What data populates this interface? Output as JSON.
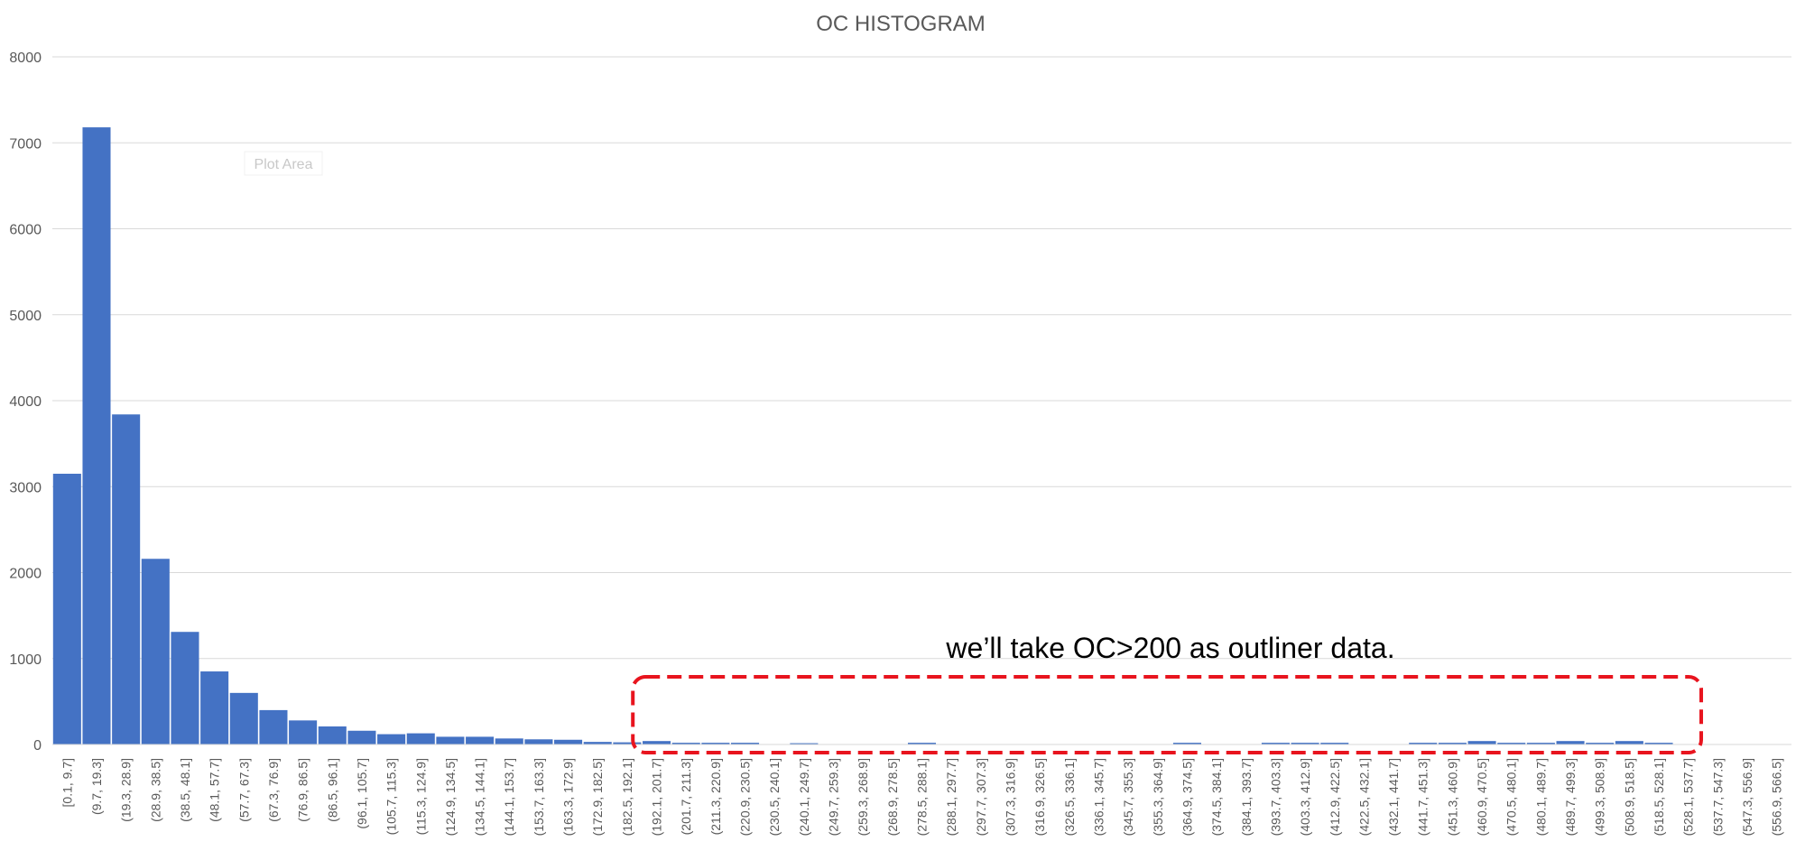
{
  "chart_data": {
    "type": "bar",
    "title": "OC HISTOGRAM",
    "xlabel": "",
    "ylabel": "",
    "ylim": [
      0,
      8000
    ],
    "yticks": [
      0,
      1000,
      2000,
      3000,
      4000,
      5000,
      6000,
      7000,
      8000
    ],
    "grid": true,
    "legend": "none",
    "bar_color": "#4472C4",
    "categories": [
      "[0.1, 9.7]",
      "(9.7, 19.3]",
      "(19.3, 28.9]",
      "(28.9, 38.5]",
      "(38.5, 48.1]",
      "(48.1, 57.7]",
      "(57.7, 67.3]",
      "(67.3, 76.9]",
      "(76.9, 86.5]",
      "(86.5, 96.1]",
      "(96.1, 105.7]",
      "(105.7, 115.3]",
      "(115.3, 124.9]",
      "(124.9, 134.5]",
      "(134.5, 144.1]",
      "(144.1, 153.7]",
      "(153.7, 163.3]",
      "(163.3, 172.9]",
      "(172.9, 182.5]",
      "(182.5, 192.1]",
      "(192.1, 201.7]",
      "(201.7, 211.3]",
      "(211.3, 220.9]",
      "(220.9, 230.5]",
      "(230.5, 240.1]",
      "(240.1, 249.7]",
      "(249.7, 259.3]",
      "(259.3, 268.9]",
      "(268.9, 278.5]",
      "(278.5, 288.1]",
      "(288.1, 297.7]",
      "(297.7, 307.3]",
      "(307.3, 316.9]",
      "(316.9, 326.5]",
      "(326.5, 336.1]",
      "(336.1, 345.7]",
      "(345.7, 355.3]",
      "(355.3, 364.9]",
      "(364.9, 374.5]",
      "(374.5, 384.1]",
      "(384.1, 393.7]",
      "(393.7, 403.3]",
      "(403.3, 412.9]",
      "(412.9, 422.5]",
      "(422.5, 432.1]",
      "(432.1, 441.7]",
      "(441.7, 451.3]",
      "(451.3, 460.9]",
      "(460.9, 470.5]",
      "(470.5, 480.1]",
      "(480.1, 489.7]",
      "(489.7, 499.3]",
      "(499.3, 508.9]",
      "(508.9, 518.5]",
      "(518.5, 528.1]",
      "(528.1, 537.7]",
      "(537.7, 547.3]",
      "(547.3, 556.9]",
      "(556.9, 566.5]"
    ],
    "values": [
      3150,
      7180,
      3840,
      2160,
      1310,
      850,
      600,
      400,
      280,
      210,
      160,
      120,
      130,
      90,
      90,
      70,
      60,
      55,
      30,
      25,
      40,
      20,
      20,
      20,
      0,
      15,
      0,
      0,
      0,
      20,
      0,
      0,
      0,
      0,
      0,
      0,
      0,
      0,
      20,
      0,
      0,
      20,
      20,
      20,
      0,
      0,
      20,
      20,
      40,
      20,
      20,
      40,
      20,
      40,
      20,
      0,
      0,
      0,
      0
    ],
    "annotation": {
      "text": "we’ll take OC>200 as outliner data.",
      "box_color": "#e8141e",
      "range": [
        "(192.1, 201.7]",
        "(528.1, 537.7]"
      ]
    },
    "tooltip": "Plot Area"
  }
}
